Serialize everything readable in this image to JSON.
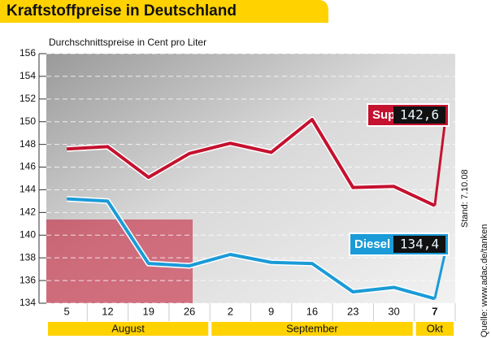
{
  "chart_data": {
    "type": "line",
    "title": "Kraftstoffpreise in Deutschland",
    "subtitle": "Durchschnittspreise in Cent pro Liter",
    "source": "Quelle: www.adac.de/tanken",
    "date": "Stand: 7.10.08",
    "categories": [
      "5",
      "12",
      "19",
      "26",
      "2",
      "9",
      "16",
      "23",
      "30",
      "7"
    ],
    "months": [
      "August",
      "September",
      "Okt"
    ],
    "series": [
      {
        "name": "Super",
        "color": "#c4122f",
        "values": [
          147.6,
          147.8,
          145.1,
          147.2,
          148.1,
          147.3,
          150.2,
          144.2,
          144.3,
          142.6
        ],
        "value_label": "142,6"
      },
      {
        "name": "Diesel",
        "color": "#1b9bd7",
        "values": [
          143.2,
          143.0,
          137.5,
          137.3,
          138.3,
          137.6,
          137.5,
          135.0,
          135.4,
          134.4
        ],
        "value_label": "134,4"
      }
    ],
    "ylim": [
      134,
      156
    ],
    "yticks": [
      134,
      136,
      138,
      140,
      142,
      144,
      146,
      148,
      150,
      152,
      154,
      156
    ],
    "grid": true
  }
}
